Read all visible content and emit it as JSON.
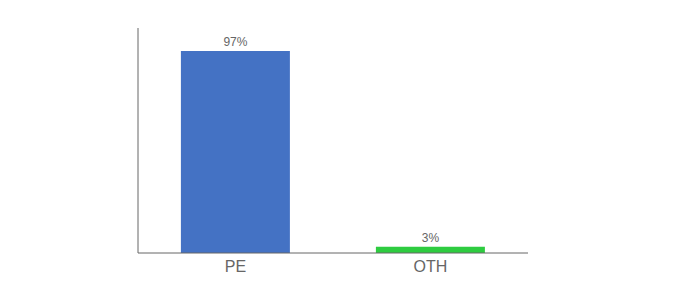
{
  "chart_data": {
    "type": "bar",
    "categories": [
      "PE",
      "OTH"
    ],
    "values": [
      97,
      3
    ],
    "value_labels": [
      "97%",
      "3%"
    ],
    "colors": [
      "#4472c4",
      "#2ecc40"
    ],
    "ylim": [
      0,
      108
    ],
    "data_labels": true,
    "tick_labels": "x",
    "grid": false
  }
}
